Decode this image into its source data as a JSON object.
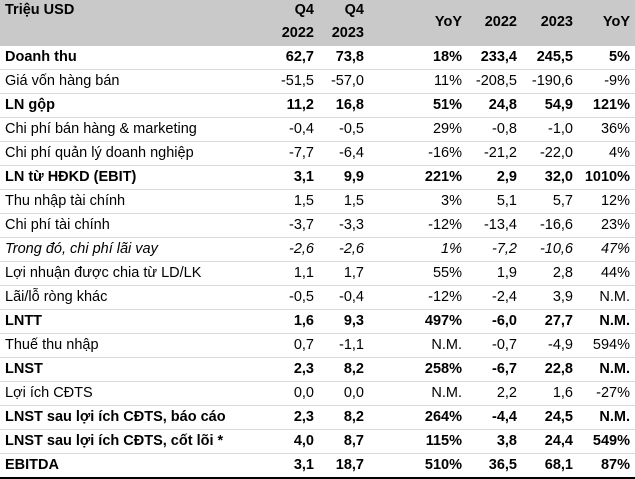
{
  "header": {
    "label": "Triệu USD",
    "q4_2022_top": "Q4",
    "q4_2022_bottom": "2022",
    "q4_2023_top": "Q4",
    "q4_2023_bottom": "2023",
    "yoy_q": "YoY",
    "y2022": "2022",
    "y2023": "2023",
    "yoy_y": "YoY"
  },
  "rows": [
    {
      "label": "Doanh thu",
      "q4_2022": "62,7",
      "q4_2023": "73,8",
      "yoy_q": "18%",
      "y2022": "233,4",
      "y2023": "245,5",
      "yoy_y": "5%"
    },
    {
      "label": "Giá vốn hàng bán",
      "q4_2022": "-51,5",
      "q4_2023": "-57,0",
      "yoy_q": "11%",
      "y2022": "-208,5",
      "y2023": "-190,6",
      "yoy_y": "-9%"
    },
    {
      "label": "LN gộp",
      "q4_2022": "11,2",
      "q4_2023": "16,8",
      "yoy_q": "51%",
      "y2022": "24,8",
      "y2023": "54,9",
      "yoy_y": "121%"
    },
    {
      "label": "Chi phí bán hàng & marketing",
      "q4_2022": "-0,4",
      "q4_2023": "-0,5",
      "yoy_q": "29%",
      "y2022": "-0,8",
      "y2023": "-1,0",
      "yoy_y": "36%"
    },
    {
      "label": "Chi phí quản lý doanh nghiệp",
      "q4_2022": "-7,7",
      "q4_2023": "-6,4",
      "yoy_q": "-16%",
      "y2022": "-21,2",
      "y2023": "-22,0",
      "yoy_y": "4%"
    },
    {
      "label": "LN từ HĐKD (EBIT)",
      "q4_2022": "3,1",
      "q4_2023": "9,9",
      "yoy_q": "221%",
      "y2022": "2,9",
      "y2023": "32,0",
      "yoy_y": "1010%"
    },
    {
      "label": "Thu nhập tài chính",
      "q4_2022": "1,5",
      "q4_2023": "1,5",
      "yoy_q": "3%",
      "y2022": "5,1",
      "y2023": "5,7",
      "yoy_y": "12%"
    },
    {
      "label": "Chi phí tài chính",
      "q4_2022": "-3,7",
      "q4_2023": "-3,3",
      "yoy_q": "-12%",
      "y2022": "-13,4",
      "y2023": "-16,6",
      "yoy_y": "23%"
    },
    {
      "label": "Trong đó, chi phí lãi vay",
      "q4_2022": "-2,6",
      "q4_2023": "-2,6",
      "yoy_q": "1%",
      "y2022": "-7,2",
      "y2023": "-10,6",
      "yoy_y": "47%"
    },
    {
      "label": "Lợi nhuận được chia từ LD/LK",
      "q4_2022": "1,1",
      "q4_2023": "1,7",
      "yoy_q": "55%",
      "y2022": "1,9",
      "y2023": "2,8",
      "yoy_y": "44%"
    },
    {
      "label": "Lãi/lỗ ròng khác",
      "q4_2022": "-0,5",
      "q4_2023": "-0,4",
      "yoy_q": "-12%",
      "y2022": "-2,4",
      "y2023": "3,9",
      "yoy_y": "N.M."
    },
    {
      "label": "LNTT",
      "q4_2022": "1,6",
      "q4_2023": "9,3",
      "yoy_q": "497%",
      "y2022": "-6,0",
      "y2023": "27,7",
      "yoy_y": "N.M."
    },
    {
      "label": "Thuế thu nhập",
      "q4_2022": "0,7",
      "q4_2023": "-1,1",
      "yoy_q": "N.M.",
      "y2022": "-0,7",
      "y2023": "-4,9",
      "yoy_y": "594%"
    },
    {
      "label": "LNST",
      "q4_2022": "2,3",
      "q4_2023": "8,2",
      "yoy_q": "258%",
      "y2022": "-6,7",
      "y2023": "22,8",
      "yoy_y": "N.M."
    },
    {
      "label": "Lợi ích CĐTS",
      "q4_2022": "0,0",
      "q4_2023": "0,0",
      "yoy_q": "N.M.",
      "y2022": "2,2",
      "y2023": "1,6",
      "yoy_y": "-27%"
    },
    {
      "label": "LNST sau lợi ích CĐTS, báo cáo",
      "q4_2022": "2,3",
      "q4_2023": "8,2",
      "yoy_q": "264%",
      "y2022": "-4,4",
      "y2023": "24,5",
      "yoy_y": "N.M."
    },
    {
      "label": "LNST sau lợi ích CĐTS, cốt lõi *",
      "q4_2022": "4,0",
      "q4_2023": "8,7",
      "yoy_q": "115%",
      "y2022": "3,8",
      "y2023": "24,4",
      "yoy_y": "549%"
    },
    {
      "label": "EBITDA",
      "q4_2022": "3,1",
      "q4_2023": "18,7",
      "yoy_q": "510%",
      "y2022": "36,5",
      "y2023": "68,1",
      "yoy_y": "87%"
    }
  ]
}
